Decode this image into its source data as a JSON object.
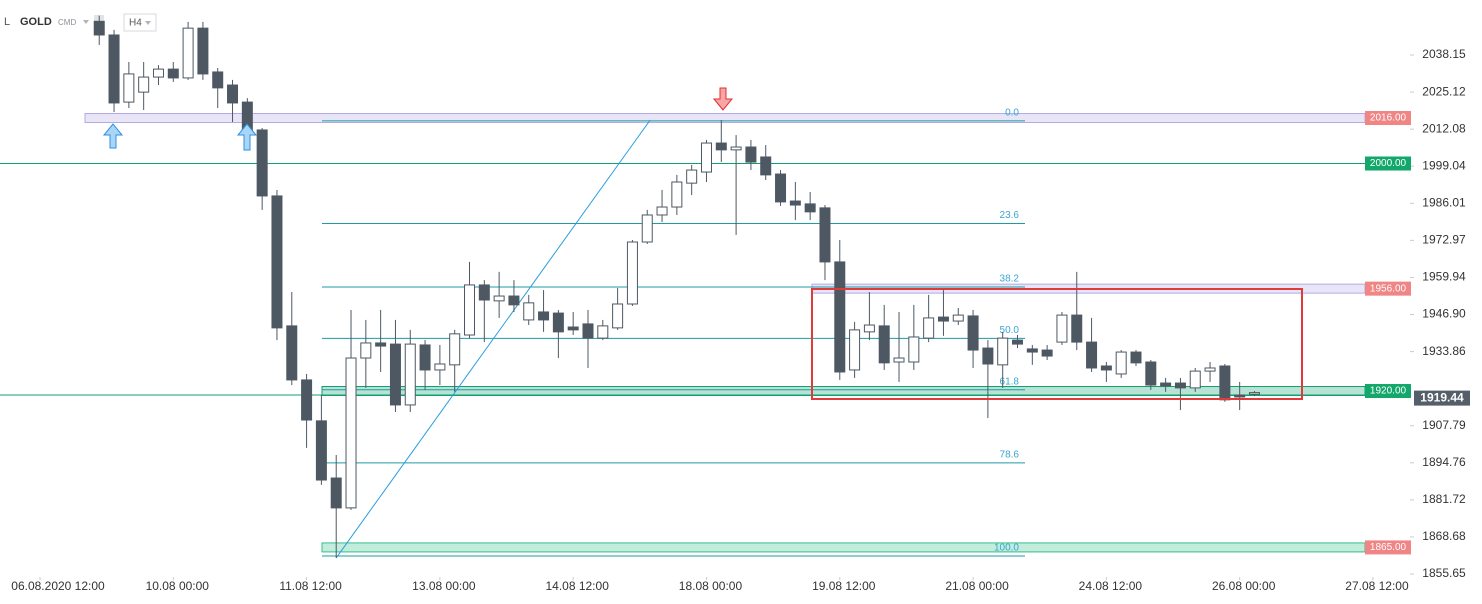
{
  "header": {
    "icon": "L",
    "symbol": "GOLD",
    "kind": "CMD",
    "timeframe": "H4"
  },
  "chart_data": {
    "type": "candlestick",
    "x": [
      0,
      1,
      2,
      3,
      4,
      5,
      6,
      7,
      8,
      9,
      10,
      11,
      12,
      13,
      14,
      15,
      16,
      17,
      18,
      19,
      20,
      21,
      22,
      23,
      24,
      25,
      26,
      27,
      28,
      29,
      30,
      31,
      32,
      33,
      34,
      35,
      36,
      37,
      38,
      39,
      40,
      41,
      42,
      43,
      44,
      45,
      46,
      47,
      48,
      49,
      50,
      51,
      52,
      53,
      54,
      55,
      56,
      57,
      58,
      59,
      60,
      61,
      62,
      63,
      64,
      65,
      66,
      67,
      68,
      69,
      70,
      71,
      72,
      73,
      74,
      75,
      76,
      77,
      78
    ],
    "open": [
      2050,
      2045.2,
      2021.6,
      2025.1,
      2030.4,
      2033.2,
      2030.1,
      2047.6,
      2032.2,
      2027.6,
      2021.6,
      2011.8,
      1988.6,
      1942.9,
      1923.9,
      1909.5,
      1889.4,
      1878.9,
      1931.6,
      1936.9,
      1936.5,
      1915.1,
      1936.2,
      1927.4,
      1929.2,
      1939.7,
      1957.3,
      1951.7,
      1953.4,
      1945.0,
      1947.8,
      1947.4,
      1942.5,
      1943.6,
      1938.6,
      1942.2,
      1950.6,
      1972.4,
      1981.9,
      1984.7,
      1993.1,
      1997.0,
      2007.2,
      2004.8,
      2005.8,
      2002.3,
      1996.3,
      1986.8,
      1985.8,
      1984.4,
      1965.4,
      1927.4,
      1940.8,
      1942.9,
      1930.2,
      1930.2,
      1938.6,
      1946.0,
      1944.6,
      1946.4,
      1935.1,
      1929.2,
      1937.9,
      1934.8,
      1934.4,
      1937.2,
      1946.7,
      1937.2,
      1928.8,
      1926.0,
      1933.7,
      1930.2,
      1922.8,
      1922.8,
      1921.1,
      1927.0,
      1928.8,
      1918.6,
      1918.9
    ],
    "high": [
      2052,
      2047,
      2035.7,
      2035.7,
      2034.6,
      2035.7,
      2049.8,
      2049.8,
      2033.6,
      2029.4,
      2023.0,
      2012.5,
      1990.7,
      1954.8,
      1926.0,
      1918.6,
      1897.5,
      1948.5,
      1945.0,
      1948.5,
      1945.0,
      1941.5,
      1937.9,
      1936.2,
      1941.5,
      1965.4,
      1959.0,
      1961.9,
      1959.0,
      1953.8,
      1955.5,
      1948.5,
      1947.8,
      1948.5,
      1945.0,
      1956.2,
      1973.1,
      1983.7,
      1990.7,
      1996.0,
      1999.5,
      2008.3,
      2015.3,
      2010.0,
      2008.3,
      2006.5,
      1997.7,
      1993.5,
      1990.0,
      1985.4,
      1973.1,
      1944.3,
      1954.8,
      1950.3,
      1947.8,
      1950.3,
      1953.8,
      1955.5,
      1949.2,
      1948.5,
      1937.9,
      1940.8,
      1939.7,
      1936.2,
      1936.2,
      1947.8,
      1961.9,
      1945.7,
      1930.2,
      1934.4,
      1934.4,
      1930.9,
      1924.6,
      1924.6,
      1928.1,
      1930.2,
      1929.5,
      1923.2,
      1920.0
    ],
    "low": [
      2041.7,
      2018.1,
      2019.5,
      2018.8,
      2027.6,
      2028.7,
      2029.4,
      2029.4,
      2019.5,
      2014.6,
      2008.3,
      1983.7,
      1937.9,
      1922.1,
      1900.0,
      1887.0,
      1861.3,
      1878.2,
      1921.1,
      1926.7,
      1912.6,
      1912.6,
      1920.4,
      1922.1,
      1919.7,
      1938.6,
      1937.2,
      1945.7,
      1947.8,
      1943.2,
      1940.8,
      1931.6,
      1939.7,
      1928.1,
      1937.9,
      1941.5,
      1949.9,
      1971.7,
      1979.4,
      1981.9,
      1988.9,
      1993.5,
      2000.5,
      1974.9,
      1997.7,
      1994.2,
      1985.1,
      1980.1,
      1980.1,
      1959.0,
      1923.9,
      1924.6,
      1937.9,
      1927.4,
      1923.2,
      1927.4,
      1937.2,
      1939.4,
      1943.2,
      1928.1,
      1910.5,
      1921.1,
      1935.1,
      1929.2,
      1930.9,
      1936.2,
      1934.4,
      1926.7,
      1923.2,
      1924.6,
      1928.8,
      1920.4,
      1919.7,
      1913.3,
      1919.7,
      1923.2,
      1916.2,
      1913.3,
      1918.2
    ],
    "close": [
      2045.2,
      2021.3,
      2031.5,
      2030.4,
      2033.2,
      2030.1,
      2047.6,
      2031.5,
      2026.6,
      2021.3,
      2011.8,
      1988.6,
      1942.2,
      1923.9,
      1909.8,
      1888.7,
      1878.9,
      1931.6,
      1936.9,
      1935.8,
      1915.1,
      1936.5,
      1927.4,
      1929.5,
      1940.1,
      1957.3,
      1952.0,
      1953.4,
      1950.3,
      1951.0,
      1945.0,
      1940.8,
      1941.5,
      1938.6,
      1942.9,
      1950.6,
      1972.4,
      1981.9,
      1984.7,
      1993.5,
      1997.7,
      2007.2,
      2004.8,
      2005.8,
      2000.5,
      1996.0,
      1986.5,
      1985.4,
      1983.0,
      1965.4,
      1926.7,
      1941.5,
      1943.2,
      1929.9,
      1931.6,
      1939.0,
      1945.7,
      1944.6,
      1946.7,
      1934.4,
      1929.5,
      1938.6,
      1936.5,
      1933.7,
      1932.3,
      1946.7,
      1937.2,
      1928.1,
      1927.4,
      1933.7,
      1929.9,
      1922.1,
      1921.8,
      1921.1,
      1927.0,
      1928.1,
      1916.9,
      1917.9,
      1919.44
    ],
    "up_color": "#ffffff",
    "down_color": "#4d5863",
    "xlim": [
      -6.7,
      88.5
    ],
    "xticks": [
      {
        "value": -4,
        "label": "06.08.2020 12:00"
      },
      {
        "value": 5,
        "label": "10.08 00:00"
      },
      {
        "value": 14,
        "label": "11.08 12:00"
      },
      {
        "value": 23,
        "label": "13.08 00:00"
      },
      {
        "value": 32,
        "label": "14.08 12:00"
      },
      {
        "value": 41,
        "label": "18.08 00:00"
      },
      {
        "value": 50,
        "label": "19.08 12:00"
      },
      {
        "value": 59,
        "label": "21.08 00:00"
      },
      {
        "value": 68,
        "label": "24.08 12:00"
      },
      {
        "value": 77,
        "label": "26.08 00:00"
      },
      {
        "value": 86,
        "label": "27.08 12:00"
      }
    ],
    "ylim": [
      1855.3,
      2057.5
    ],
    "yticks": [
      2038.15,
      2025.12,
      2012.08,
      1999.04,
      1986.01,
      1972.97,
      1959.94,
      {
        "value": 1946.9,
        "label": "1946.90"
      },
      1933.86,
      1907.79,
      1894.76,
      1881.72,
      1868.68,
      1855.65
    ],
    "levels": [
      {
        "value": 2016,
        "label": "2016.00",
        "style": "zone",
        "color": "#b3a9e6",
        "label_color": "#ef8585"
      },
      {
        "value": 2000,
        "label": "2000.00",
        "style": "line",
        "color": "#13a070",
        "label_color": "#13a86b"
      },
      {
        "value": 1956,
        "label": "1956.00",
        "style": "zone",
        "color": "#b3a9e6",
        "label_color": "#ef8585"
      },
      {
        "value": 1920,
        "label": "1920.00",
        "style": "zone-line",
        "color": "#13a070",
        "label_color": "#13a86b"
      },
      {
        "value": 1865,
        "label": "1865.00",
        "style": "zone",
        "color": "#35c08a",
        "label_color": "#ef8585"
      }
    ],
    "fibonacci": {
      "high": 2015,
      "low": 1862,
      "color": "#1d9ca4",
      "levels": [
        {
          "value": 0,
          "label": "0.0"
        },
        23.6,
        38.2,
        {
          "value": 50,
          "label": "50.0"
        },
        61.8,
        78.6,
        {
          "value": 100,
          "label": "100.0"
        }
      ]
    },
    "trendline": {
      "x": [
        16,
        37.2
      ],
      "y": [
        1861.3,
        2015.3
      ],
      "color": "#2a9de0"
    }
  }
}
